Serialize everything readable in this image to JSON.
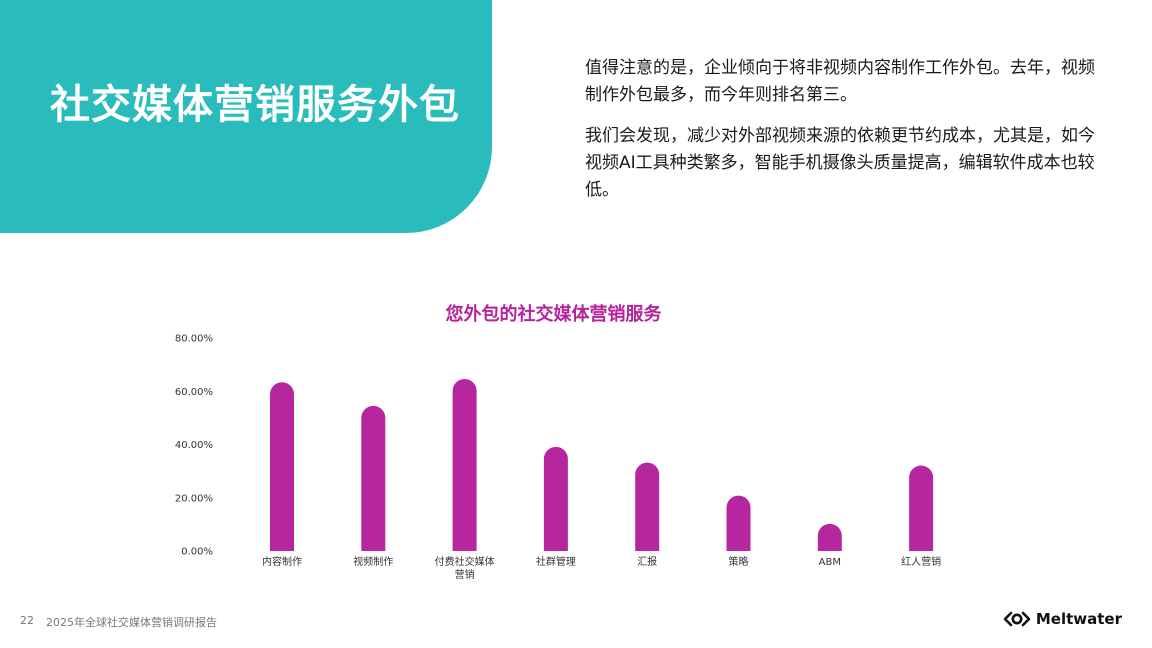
{
  "header": {
    "title": "社交媒体营销服务外包",
    "panel_color": "#2abcbd"
  },
  "intro": {
    "paragraphs": [
      "值得注意的是，企业倾向于将非视频内容制作工作外包。去年，视频制作外包最多，而今年则排名第三。",
      "我们会发现，减少对外部视频来源的依赖更节约成本，尤其是，如今视频AI工具种类繁多，智能手机摄像头质量提高，编辑软件成本也较低。"
    ]
  },
  "chart_data": {
    "type": "bar",
    "title": "您外包的社交媒体营销服务",
    "categories": [
      "内容制作",
      "视频制作",
      "付费社交媒体营销",
      "社群管理",
      "汇报",
      "策略",
      "ABM",
      "红人营销"
    ],
    "category_lines": [
      [
        "内容制作"
      ],
      [
        "视频制作"
      ],
      [
        "付费社交媒体",
        "营销"
      ],
      [
        "社群管理"
      ],
      [
        "汇报"
      ],
      [
        "策略"
      ],
      [
        "ABM"
      ],
      [
        "红人营销"
      ]
    ],
    "values": [
      63.4,
      54.5,
      64.6,
      39.1,
      33.2,
      20.8,
      10.2,
      32.1
    ],
    "yticks": [
      "0.00%",
      "20.00%",
      "40.00%",
      "60.00%",
      "80.00%"
    ],
    "ylim": [
      0,
      80
    ],
    "bar_color": "#b5269f",
    "grid": false
  },
  "footer": {
    "page_number": "22",
    "report_title": "2025年全球社交媒体营销调研报告",
    "brand": "Meltwater",
    "brand_icon": "meltwater-logo-icon"
  }
}
